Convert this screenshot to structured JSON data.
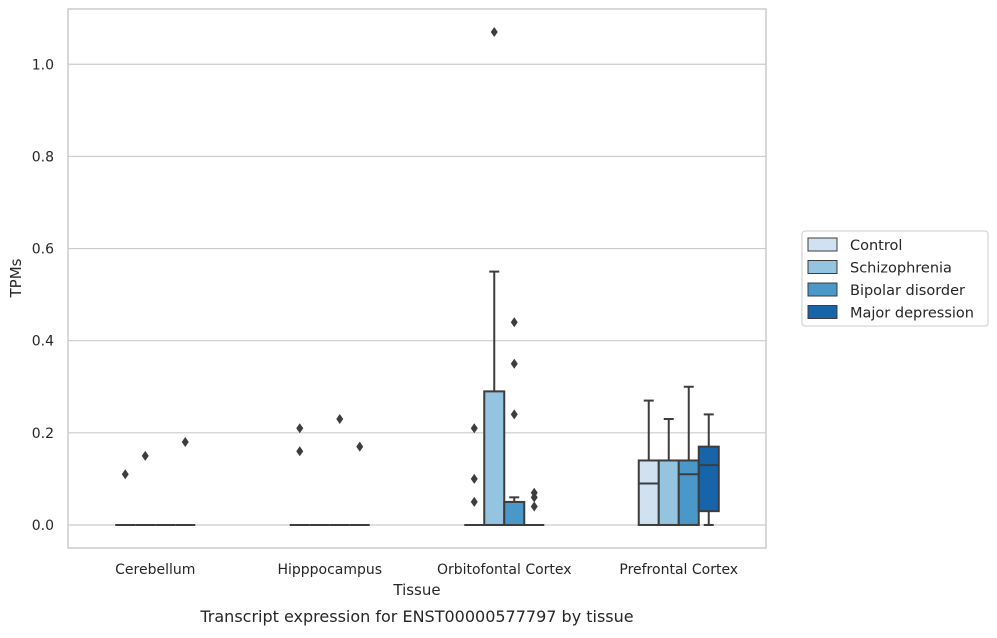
{
  "chart_data": {
    "type": "box",
    "title": "",
    "caption": "Transcript expression for ENST00000577797 by tissue",
    "xlabel": "Tissue",
    "ylabel": "TPMs",
    "ylim": [
      -0.05,
      1.12
    ],
    "yticks": [
      0.0,
      0.2,
      0.4,
      0.6,
      0.8,
      1.0
    ],
    "ytick_labels": [
      "0.0",
      "0.2",
      "0.4",
      "0.6",
      "0.8",
      "1.0"
    ],
    "grid": "horizontal",
    "legend_position": "right",
    "categories": [
      "Cerebellum",
      "Hipppocampus",
      "Orbitofontal Cortex",
      "Prefrontal Cortex"
    ],
    "series": [
      {
        "name": "Control",
        "color": "#d0e1f2",
        "boxes": [
          {
            "q1": 0,
            "median": 0,
            "q3": 0,
            "whisker_low": 0,
            "whisker_high": 0,
            "outliers": [
              0.11
            ]
          },
          {
            "q1": 0,
            "median": 0,
            "q3": 0,
            "whisker_low": 0,
            "whisker_high": 0,
            "outliers": [
              0.16,
              0.21
            ]
          },
          {
            "q1": 0,
            "median": 0,
            "q3": 0,
            "whisker_low": 0,
            "whisker_high": 0,
            "outliers": [
              0.05,
              0.1,
              0.21
            ]
          },
          {
            "q1": 0,
            "median": 0.09,
            "q3": 0.14,
            "whisker_low": 0,
            "whisker_high": 0.27,
            "outliers": []
          }
        ]
      },
      {
        "name": "Schizophrenia",
        "color": "#94c4df",
        "boxes": [
          {
            "q1": 0,
            "median": 0,
            "q3": 0,
            "whisker_low": 0,
            "whisker_high": 0,
            "outliers": [
              0.15
            ]
          },
          {
            "q1": 0,
            "median": 0,
            "q3": 0,
            "whisker_low": 0,
            "whisker_high": 0,
            "outliers": []
          },
          {
            "q1": 0,
            "median": 0,
            "q3": 0.29,
            "whisker_low": 0,
            "whisker_high": 0.55,
            "outliers": [
              1.07
            ]
          },
          {
            "q1": 0,
            "median": 0,
            "q3": 0.14,
            "whisker_low": 0,
            "whisker_high": 0.23,
            "outliers": []
          }
        ]
      },
      {
        "name": "Bipolar disorder",
        "color": "#4a98c9",
        "boxes": [
          {
            "q1": 0,
            "median": 0,
            "q3": 0,
            "whisker_low": 0,
            "whisker_high": 0,
            "outliers": []
          },
          {
            "q1": 0,
            "median": 0,
            "q3": 0,
            "whisker_low": 0,
            "whisker_high": 0,
            "outliers": [
              0.23
            ]
          },
          {
            "q1": 0,
            "median": 0,
            "q3": 0.05,
            "whisker_low": 0,
            "whisker_high": 0.06,
            "outliers": [
              0.24,
              0.35,
              0.44
            ]
          },
          {
            "q1": 0,
            "median": 0.11,
            "q3": 0.14,
            "whisker_low": 0,
            "whisker_high": 0.3,
            "outliers": []
          }
        ]
      },
      {
        "name": "Major depression",
        "color": "#1764ab",
        "boxes": [
          {
            "q1": 0,
            "median": 0,
            "q3": 0,
            "whisker_low": 0,
            "whisker_high": 0,
            "outliers": [
              0.18
            ]
          },
          {
            "q1": 0,
            "median": 0,
            "q3": 0,
            "whisker_low": 0,
            "whisker_high": 0,
            "outliers": [
              0.17
            ]
          },
          {
            "q1": 0,
            "median": 0,
            "q3": 0,
            "whisker_low": 0,
            "whisker_high": 0,
            "outliers": [
              0.04,
              0.06,
              0.07
            ]
          },
          {
            "q1": 0.03,
            "median": 0.13,
            "q3": 0.17,
            "whisker_low": 0,
            "whisker_high": 0.24,
            "outliers": []
          }
        ]
      }
    ]
  }
}
